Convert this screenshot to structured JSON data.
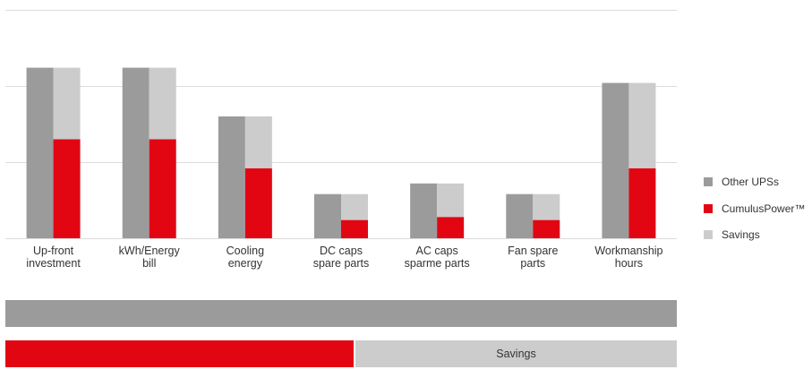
{
  "chart_data": {
    "type": "bar",
    "categories": [
      [
        "Up-front",
        "investment"
      ],
      [
        "kWh/Energy",
        "bill"
      ],
      [
        "Cooling",
        "energy"
      ],
      [
        "DC caps",
        "spare parts"
      ],
      [
        "AC caps",
        "sparme parts"
      ],
      [
        "Fan spare",
        "parts"
      ],
      [
        "Workmanship",
        "hours"
      ]
    ],
    "series": [
      {
        "name": "Other UPSs",
        "color": "#9b9b9b",
        "values": [
          1.12,
          1.12,
          0.8,
          0.29,
          0.36,
          0.29,
          1.02
        ]
      },
      {
        "name": "CumulusPower™",
        "color": "#e20613",
        "values": [
          0.65,
          0.65,
          0.46,
          0.12,
          0.14,
          0.12,
          0.46
        ]
      },
      {
        "name": "Savings",
        "color": "#cccccc",
        "values": [
          0.47,
          0.47,
          0.34,
          0.17,
          0.22,
          0.17,
          0.56
        ]
      }
    ],
    "stacked_series": [
      "CumulusPower™",
      "Savings"
    ],
    "ylim": [
      0,
      1.5
    ],
    "gridlines": [
      0.5,
      1.0,
      1.5
    ],
    "grid": true,
    "legend": "right",
    "title": "",
    "xlabel": "",
    "ylabel": ""
  },
  "summary": {
    "total_color": "#9b9b9b",
    "split_fraction": 0.52,
    "split_red_color": "#e20613",
    "split_gray_color": "#cccccc",
    "savings_label": "Savings"
  }
}
